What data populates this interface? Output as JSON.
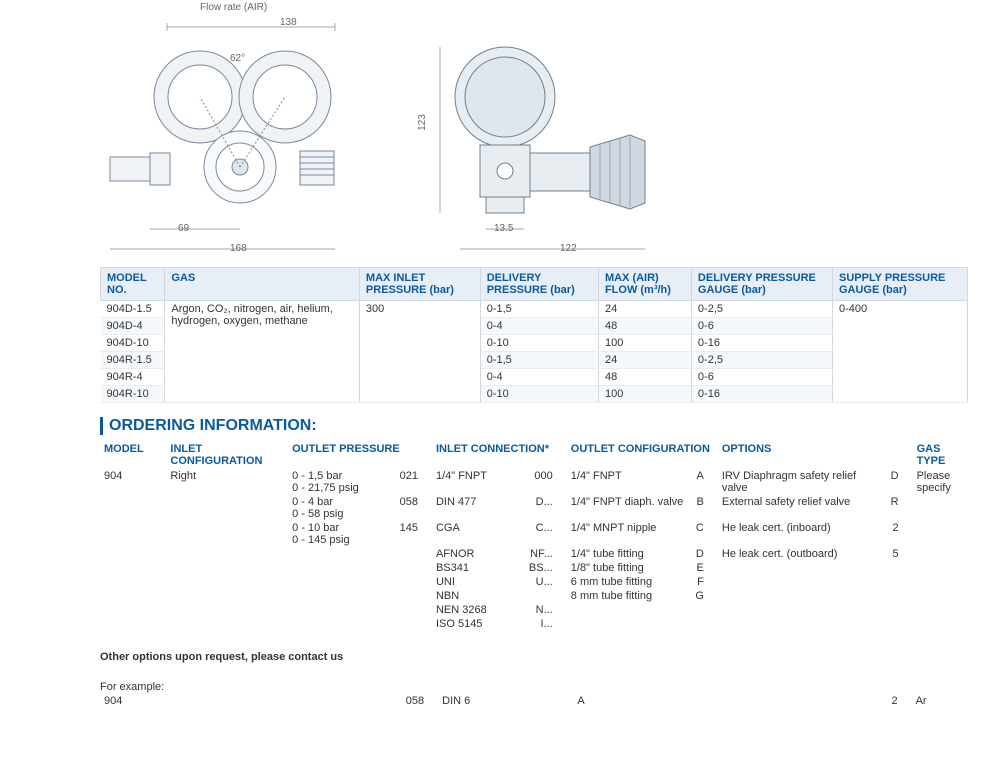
{
  "flow_rate_label": "Flow rate (AIR)",
  "drawings": {
    "front": {
      "width_dim": "138",
      "angle_dim": "62°",
      "gauge_offset_dim": "69",
      "total_width_dim": "168",
      "line_color": "#7a8a99",
      "fill_color": "#f0f3f6"
    },
    "side": {
      "height_dim": "123",
      "nut_width_dim": "13.5",
      "total_width_dim": "122",
      "line_color": "#6f7f8f",
      "fill_color": "#e8edf2"
    }
  },
  "spec_table": {
    "headers": [
      "MODEL NO.",
      "GAS",
      "MAX INLET PRESSURE (bar)",
      "DELIVERY PRESSURE (bar)",
      "MAX (AIR) FLOW (m³/h)",
      "DELIVERY PRESSURE GAUGE (bar)",
      "SUPPLY PRESSURE GAUGE (bar)"
    ],
    "gas_text": "Argon, CO₂, nitrogen, air, helium, hydrogen, oxygen, methane",
    "max_inlet": "300",
    "supply_gauge": "0-400",
    "rows": [
      {
        "model": "904D-1.5",
        "delivery": "0-1,5",
        "flow": "24",
        "gauge": "0-2,5"
      },
      {
        "model": "904D-4",
        "delivery": "0-4",
        "flow": "48",
        "gauge": "0-6"
      },
      {
        "model": "904D-10",
        "delivery": "0-10",
        "flow": "100",
        "gauge": "0-16"
      },
      {
        "model": "904R-1.5",
        "delivery": "0-1,5",
        "flow": "24",
        "gauge": "0-2,5"
      },
      {
        "model": "904R-4",
        "delivery": "0-4",
        "flow": "48",
        "gauge": "0-6"
      },
      {
        "model": "904R-10",
        "delivery": "0-10",
        "flow": "100",
        "gauge": "0-16"
      }
    ]
  },
  "ordering_heading": "ORDERING INFORMATION:",
  "ordering": {
    "headers": {
      "model": "MODEL",
      "inlet_config": "INLET CONFIGURATION",
      "outlet_pressure": "OUTLET PRESSURE",
      "inlet_conn": "INLET CONNECTION*",
      "outlet_config": "OUTLET CONFIGURATION",
      "options": "OPTIONS",
      "gas_type": "GAS TYPE"
    },
    "model_value": "904",
    "inlet_config_value": "Right",
    "outlet_pressure": [
      {
        "label": "0 - 1,5 bar\n0 - 21,75 psig",
        "code": "021"
      },
      {
        "label": "0 - 4 bar\n0 - 58 psig",
        "code": "058"
      },
      {
        "label": "0 - 10 bar\n0 - 145 psig",
        "code": "145"
      }
    ],
    "inlet_conn": [
      {
        "label": "1/4\" FNPT",
        "code": "000"
      },
      {
        "label": "DIN 477",
        "code": "D..."
      },
      {
        "label": "CGA",
        "code": "C..."
      },
      {
        "label": "AFNOR",
        "code": "NF..."
      },
      {
        "label": "BS341",
        "code": "BS..."
      },
      {
        "label": "UNI",
        "code": "U..."
      },
      {
        "label": "NBN",
        "code": ""
      },
      {
        "label": "NEN 3268",
        "code": "N..."
      },
      {
        "label": "ISO 5145",
        "code": "I..."
      }
    ],
    "outlet_config": [
      {
        "label": "1/4\" FNPT",
        "code": "A"
      },
      {
        "label": "1/4\" FNPT diaph. valve",
        "code": "B"
      },
      {
        "label": "1/4\" MNPT nipple",
        "code": "C"
      },
      {
        "label": "1/4\" tube fitting",
        "code": "D"
      },
      {
        "label": "1/8\" tube fitting",
        "code": "E"
      },
      {
        "label": "6 mm tube fitting",
        "code": "F"
      },
      {
        "label": "8 mm tube fitting",
        "code": "G"
      }
    ],
    "options": [
      {
        "label": "IRV Diaphragm safety relief valve",
        "code": "D"
      },
      {
        "label": "External safety relief valve",
        "code": "R"
      },
      {
        "label": "He leak cert. (inboard)",
        "code": "2"
      },
      {
        "label": "He leak cert. (outboard)",
        "code": "5"
      }
    ],
    "gas_type_value": "Please specify",
    "note": "Other options upon request, please contact us"
  },
  "example": {
    "label": "For example:",
    "cells": {
      "model": "904",
      "inlet_config": "",
      "outlet_pressure": "058",
      "inlet_conn": "DIN 6",
      "outlet_config": "A",
      "options": "2",
      "gas_type": "Ar"
    }
  }
}
